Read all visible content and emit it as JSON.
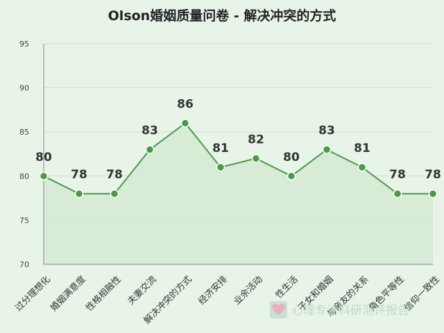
{
  "chart_data": {
    "type": "area",
    "title": "Olson婚姻质量问卷 - 解决冲突的方式",
    "xlabel": "",
    "ylabel": "",
    "categories": [
      "过分理想化",
      "婚姻满意度",
      "性格相融性",
      "夫妻交流",
      "解决冲突的方式",
      "经济安排",
      "业余活动",
      "性生活",
      "子女和婚姻",
      "与亲友的关系",
      "角色平等性",
      "信仰一致性"
    ],
    "values": [
      80,
      78,
      78,
      83,
      86,
      81,
      82,
      80,
      83,
      81,
      78,
      78
    ],
    "ylim": [
      70,
      95
    ],
    "yticks": [
      70,
      75,
      80,
      85,
      90,
      95
    ],
    "grid": true,
    "legend": "none",
    "colors": {
      "line": "#4a9a4a",
      "fill": "#d4e9d2",
      "point": "#4a9a4a",
      "point_stroke": "#ffffff",
      "grid": "#cfe0cf",
      "axis": "#9a9a9a"
    }
  },
  "watermark": {
    "text": "心理专注科研测评报告",
    "icon": "heart-icon"
  }
}
